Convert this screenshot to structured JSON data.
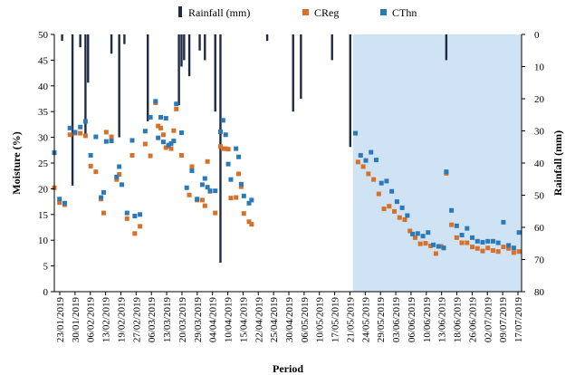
{
  "chart_data": {
    "type": "scatter",
    "xlabel": "Period",
    "ylabel_left": "Moisture (%)",
    "ylabel_right": "Rainfall (mm)",
    "ylim_left": [
      0,
      50
    ],
    "yticks_left": [
      "0",
      "5",
      "10",
      "15",
      "20",
      "25",
      "30",
      "35",
      "40",
      "45",
      "50"
    ],
    "ylim_right": [
      0,
      80
    ],
    "right_axis_inverted": true,
    "yticks_right": [
      "0",
      "10",
      "20",
      "30",
      "40",
      "50",
      "60",
      "70",
      "80"
    ],
    "x_range_days": [
      0,
      180
    ],
    "x_tick_labels": [
      "23/01/2019",
      "30/01/2019",
      "06/02/2019",
      "13/02/2019",
      "19/02/2019",
      "27/02/2019",
      "06/03/2019",
      "13/03/2019",
      "20/03/2019",
      "29/03/2019",
      "04/04/2019",
      "10/04/2019",
      "15/04/2019",
      "22/04/2019",
      "25/04/2019",
      "30/04/2019",
      "06/05/2019",
      "10/05/2019",
      "17/05/2019",
      "21/05/2019",
      "24/05/2019",
      "29/05/2019",
      "03/06/2019",
      "06/06/2019",
      "10/06/2019",
      "13/06/2019",
      "18/06/2019",
      "26/06/2019",
      "02/07/2019",
      "09/07/2019",
      "17/07/2019"
    ],
    "shaded_from_day": 115,
    "legend": {
      "placement": "top-center",
      "entries": [
        "Rainfall (mm)",
        "CReg",
        "CThn"
      ]
    },
    "grid": false,
    "colors": {
      "rainfall": "#1f2a44",
      "creg": "#d6702a",
      "cthn": "#2a7ab8",
      "shade": "#cfe3f5"
    },
    "series": [
      {
        "name": "Rainfall (mm)",
        "kind": "bar",
        "axis": "right",
        "points": [
          [
            3,
            2
          ],
          [
            7,
            47
          ],
          [
            10,
            4
          ],
          [
            12,
            31
          ],
          [
            13,
            15
          ],
          [
            22,
            6
          ],
          [
            25,
            32
          ],
          [
            27,
            3
          ],
          [
            36,
            27
          ],
          [
            48,
            22
          ],
          [
            49,
            10
          ],
          [
            50,
            8
          ],
          [
            52,
            13
          ],
          [
            56,
            5
          ],
          [
            58,
            8
          ],
          [
            62,
            24
          ],
          [
            64,
            71
          ],
          [
            82,
            2
          ],
          [
            92,
            24
          ],
          [
            95,
            20
          ],
          [
            107,
            8
          ],
          [
            114,
            35
          ],
          [
            151,
            8
          ]
        ]
      },
      {
        "name": "CReg",
        "kind": "scatter",
        "axis": "left",
        "points": [
          [
            0,
            20.2
          ],
          [
            2,
            17.3
          ],
          [
            4,
            16.9
          ],
          [
            6,
            30.5
          ],
          [
            8,
            30.8
          ],
          [
            10,
            30.8
          ],
          [
            12,
            30.3
          ],
          [
            14,
            24.4
          ],
          [
            16,
            23.3
          ],
          [
            18,
            18.0
          ],
          [
            19,
            15.3
          ],
          [
            20,
            31.0
          ],
          [
            22,
            30.1
          ],
          [
            24,
            21.8
          ],
          [
            25,
            22.8
          ],
          [
            28,
            14.2
          ],
          [
            30,
            26.5
          ],
          [
            31,
            11.3
          ],
          [
            33,
            12.7
          ],
          [
            35,
            28.7
          ],
          [
            37,
            26.4
          ],
          [
            39,
            36.7
          ],
          [
            40,
            32.2
          ],
          [
            41,
            31.8
          ],
          [
            42,
            30.5
          ],
          [
            43,
            28.0
          ],
          [
            44,
            28.3
          ],
          [
            45,
            27.8
          ],
          [
            46,
            31.3
          ],
          [
            47,
            35.5
          ],
          [
            49,
            26.5
          ],
          [
            52,
            18.8
          ],
          [
            53,
            24.3
          ],
          [
            55,
            17.8
          ],
          [
            57,
            17.8
          ],
          [
            58,
            16.7
          ],
          [
            59,
            25.3
          ],
          [
            60,
            19.5
          ],
          [
            62,
            15.3
          ],
          [
            64,
            28.2
          ],
          [
            65,
            27.8
          ],
          [
            66,
            27.8
          ],
          [
            67,
            27.7
          ],
          [
            68,
            18.2
          ],
          [
            70,
            18.3
          ],
          [
            71,
            22.9
          ],
          [
            72,
            20.4
          ],
          [
            73,
            15.2
          ],
          [
            75,
            13.6
          ],
          [
            76,
            13.1
          ],
          [
            117,
            25.2
          ],
          [
            119,
            24.3
          ],
          [
            121,
            22.9
          ],
          [
            123,
            21.8
          ],
          [
            125,
            19.0
          ],
          [
            127,
            16.1
          ],
          [
            129,
            16.6
          ],
          [
            131,
            15.6
          ],
          [
            133,
            14.4
          ],
          [
            135,
            14.0
          ],
          [
            137,
            11.8
          ],
          [
            139,
            10.5
          ],
          [
            141,
            9.3
          ],
          [
            143,
            9.4
          ],
          [
            145,
            8.9
          ],
          [
            147,
            7.4
          ],
          [
            149,
            8.8
          ],
          [
            150,
            8.5
          ],
          [
            151,
            23.0
          ],
          [
            153,
            13.0
          ],
          [
            155,
            10.5
          ],
          [
            157,
            9.5
          ],
          [
            159,
            9.5
          ],
          [
            161,
            8.7
          ],
          [
            163,
            8.4
          ],
          [
            165,
            7.9
          ],
          [
            167,
            8.5
          ],
          [
            169,
            8.0
          ],
          [
            171,
            7.8
          ],
          [
            173,
            8.7
          ],
          [
            175,
            8.4
          ],
          [
            177,
            7.6
          ],
          [
            179,
            7.8
          ]
        ]
      },
      {
        "name": "CThn",
        "kind": "scatter",
        "axis": "left",
        "points": [
          [
            0,
            27.0
          ],
          [
            2,
            18.0
          ],
          [
            4,
            17.2
          ],
          [
            6,
            31.8
          ],
          [
            8,
            31.0
          ],
          [
            10,
            32.0
          ],
          [
            12,
            33.1
          ],
          [
            14,
            26.5
          ],
          [
            16,
            30.1
          ],
          [
            18,
            18.3
          ],
          [
            19,
            19.3
          ],
          [
            20,
            29.2
          ],
          [
            22,
            29.3
          ],
          [
            24,
            22.3
          ],
          [
            25,
            24.3
          ],
          [
            26,
            20.8
          ],
          [
            28,
            15.3
          ],
          [
            30,
            29.4
          ],
          [
            31,
            14.7
          ],
          [
            33,
            15.0
          ],
          [
            35,
            31.2
          ],
          [
            37,
            33.9
          ],
          [
            39,
            37.0
          ],
          [
            40,
            29.9
          ],
          [
            41,
            33.9
          ],
          [
            42,
            29.1
          ],
          [
            43,
            33.7
          ],
          [
            44,
            28.5
          ],
          [
            45,
            28.8
          ],
          [
            46,
            29.3
          ],
          [
            47,
            36.5
          ],
          [
            49,
            30.9
          ],
          [
            51,
            20.2
          ],
          [
            53,
            23.5
          ],
          [
            55,
            18.0
          ],
          [
            57,
            20.8
          ],
          [
            58,
            22.0
          ],
          [
            59,
            20.3
          ],
          [
            60,
            19.6
          ],
          [
            62,
            19.6
          ],
          [
            64,
            31.1
          ],
          [
            65,
            33.3
          ],
          [
            66,
            30.5
          ],
          [
            67,
            24.8
          ],
          [
            68,
            21.8
          ],
          [
            70,
            27.8
          ],
          [
            71,
            26.2
          ],
          [
            72,
            20.9
          ],
          [
            73,
            18.6
          ],
          [
            75,
            17.2
          ],
          [
            76,
            17.8
          ],
          [
            116,
            30.8
          ],
          [
            118,
            26.5
          ],
          [
            120,
            25.5
          ],
          [
            122,
            27.1
          ],
          [
            124,
            25.6
          ],
          [
            126,
            21.1
          ],
          [
            128,
            21.5
          ],
          [
            130,
            19.5
          ],
          [
            132,
            17.5
          ],
          [
            134,
            16.3
          ],
          [
            136,
            14.8
          ],
          [
            138,
            11.2
          ],
          [
            140,
            11.3
          ],
          [
            142,
            10.8
          ],
          [
            144,
            11.5
          ],
          [
            146,
            9.1
          ],
          [
            148,
            8.8
          ],
          [
            150,
            8.5
          ],
          [
            151,
            23.3
          ],
          [
            153,
            15.8
          ],
          [
            155,
            12.8
          ],
          [
            157,
            11.0
          ],
          [
            159,
            12.3
          ],
          [
            161,
            10.5
          ],
          [
            163,
            9.8
          ],
          [
            165,
            9.6
          ],
          [
            167,
            9.8
          ],
          [
            169,
            9.8
          ],
          [
            171,
            9.5
          ],
          [
            173,
            13.5
          ],
          [
            175,
            9.0
          ],
          [
            177,
            8.5
          ],
          [
            179,
            11.5
          ]
        ]
      }
    ]
  }
}
